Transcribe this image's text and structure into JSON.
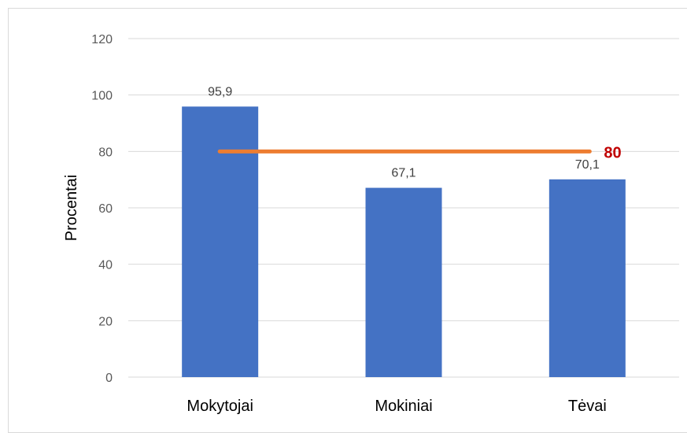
{
  "chart_data": {
    "type": "bar",
    "categories": [
      "Mokytojai",
      "Mokiniai",
      "Tėvai"
    ],
    "series": [
      {
        "values": [
          95.9,
          67.1,
          70.1
        ],
        "labels": [
          "95,9",
          "67,1",
          "70,1"
        ],
        "color": "#4472c4"
      }
    ],
    "reference_line": {
      "value": 80,
      "label": "80",
      "color": "#ed7d31",
      "label_color": "#c00000"
    },
    "ylabel": "Procentai",
    "xlabel": "",
    "ylim": [
      0,
      120
    ],
    "yticks": [
      0,
      20,
      40,
      60,
      80,
      100,
      120
    ],
    "grid": true,
    "legend": false
  }
}
